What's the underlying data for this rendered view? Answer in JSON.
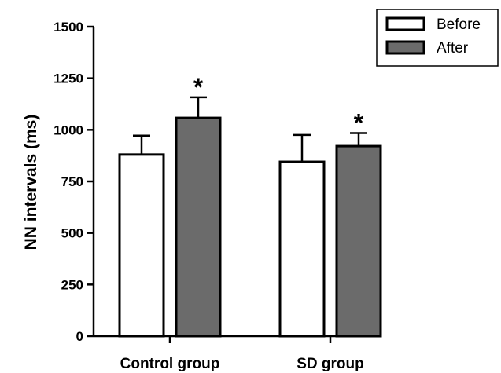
{
  "chart_data": {
    "type": "bar",
    "categories": [
      "Control group",
      "SD group"
    ],
    "series": [
      {
        "name": "Before",
        "values": [
          880,
          845
        ],
        "error": [
          92,
          130
        ],
        "significance": [
          "",
          ""
        ],
        "color": "#ffffff"
      },
      {
        "name": "After",
        "values": [
          1058,
          921
        ],
        "error": [
          100,
          63
        ],
        "significance": [
          "*",
          "*"
        ],
        "color": "#6b6b6b"
      }
    ],
    "ylabel": "NN intervals (ms)",
    "xlabel": "",
    "ylim": [
      0,
      1500
    ],
    "yticks": [
      0,
      250,
      500,
      750,
      1000,
      1250,
      1500
    ],
    "grid": false,
    "legend_position": "top-right"
  }
}
